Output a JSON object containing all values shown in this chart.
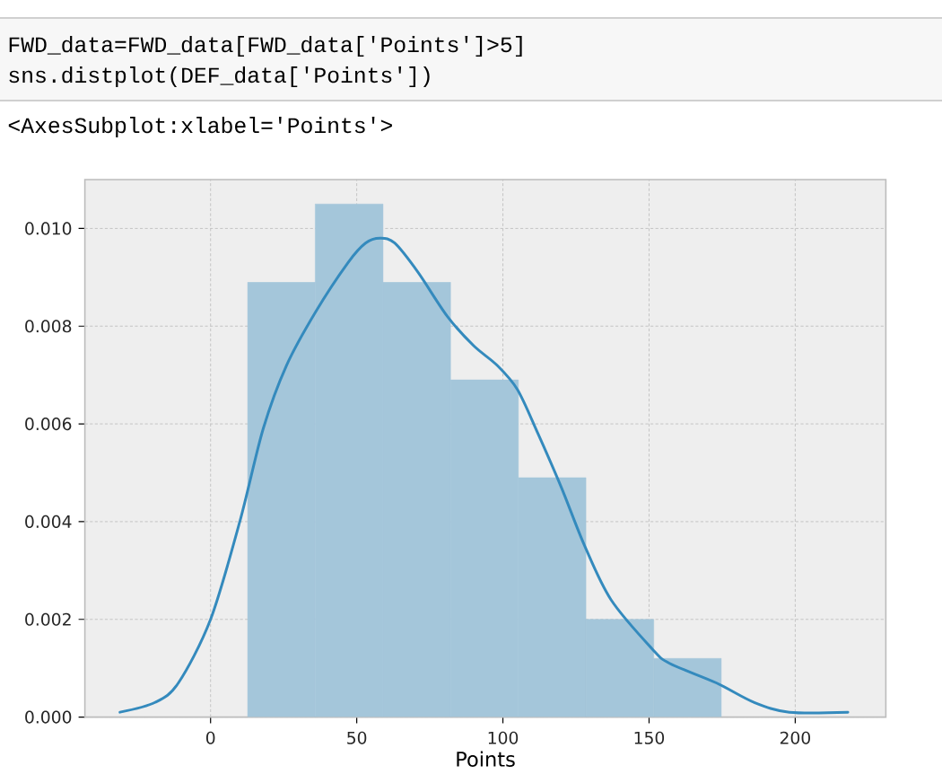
{
  "chart_data": {
    "type": "histogram",
    "xlabel": "Points",
    "annotations": [
      "FWD_data=FWD_data[FWD_data['Points']>5]",
      "sns.distplot(DEF_data['Points'])",
      "<AxesSubplot:xlabel='Points'>"
    ],
    "series": [
      {
        "color": "#a4c6da",
        "bins": [
          12.7,
          35.8,
          59.0,
          82.1,
          105.3,
          128.4,
          151.6,
          174.7
        ],
        "values": [
          0.0089,
          0.0105,
          0.0089,
          0.0069,
          0.0049,
          0.002,
          0.0012
        ]
      },
      {
        "type": "line",
        "color": "#348abd",
        "x": [
          -31,
          -19,
          -11,
          0,
          10,
          18,
          26,
          36,
          47,
          53,
          58,
          63,
          71,
          81,
          90,
          98,
          105,
          112,
          120,
          128,
          137,
          151,
          157,
          173,
          186,
          198,
          218
        ],
        "values": [
          0.0001,
          0.0003,
          0.0007,
          0.002,
          0.004,
          0.0059,
          0.0072,
          0.0083,
          0.0093,
          0.0097,
          0.0098,
          0.0097,
          0.0091,
          0.0082,
          0.0076,
          0.0072,
          0.0067,
          0.0058,
          0.0047,
          0.0035,
          0.0024,
          0.0014,
          0.0011,
          0.0007,
          0.0003,
          0.0001,
          0.0001
        ]
      }
    ],
    "xlim": [
      -43,
      231
    ],
    "ylim": [
      0,
      0.011
    ],
    "xticks": [
      0,
      50,
      100,
      150,
      200
    ],
    "yticks": [
      {
        "value": 0,
        "label": "0.000"
      },
      {
        "value": 0.002,
        "label": "0.002"
      },
      {
        "value": 0.004,
        "label": "0.004"
      },
      {
        "value": 0.006,
        "label": "0.006"
      },
      {
        "value": 0.008,
        "label": "0.008"
      },
      {
        "value": 0.01,
        "label": "0.010"
      }
    ],
    "grid": true
  }
}
